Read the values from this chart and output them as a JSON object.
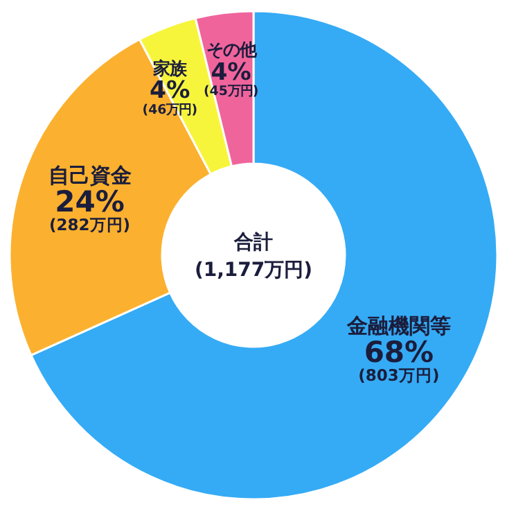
{
  "chart_data": {
    "type": "donut",
    "categories": [
      "金融機関等",
      "自己資金",
      "家族",
      "その他"
    ],
    "values": [
      803,
      282,
      46,
      45
    ],
    "colors": [
      "#35abf5",
      "#fbb12f",
      "#f6f53c",
      "#f0649c"
    ],
    "value_labels": [
      "68%\n(803万円)",
      "24%\n(282万円)",
      "4%\n(46万円)",
      "4%\n(45万円)"
    ],
    "annotations": [
      "合計",
      "(1,177万円)"
    ]
  }
}
